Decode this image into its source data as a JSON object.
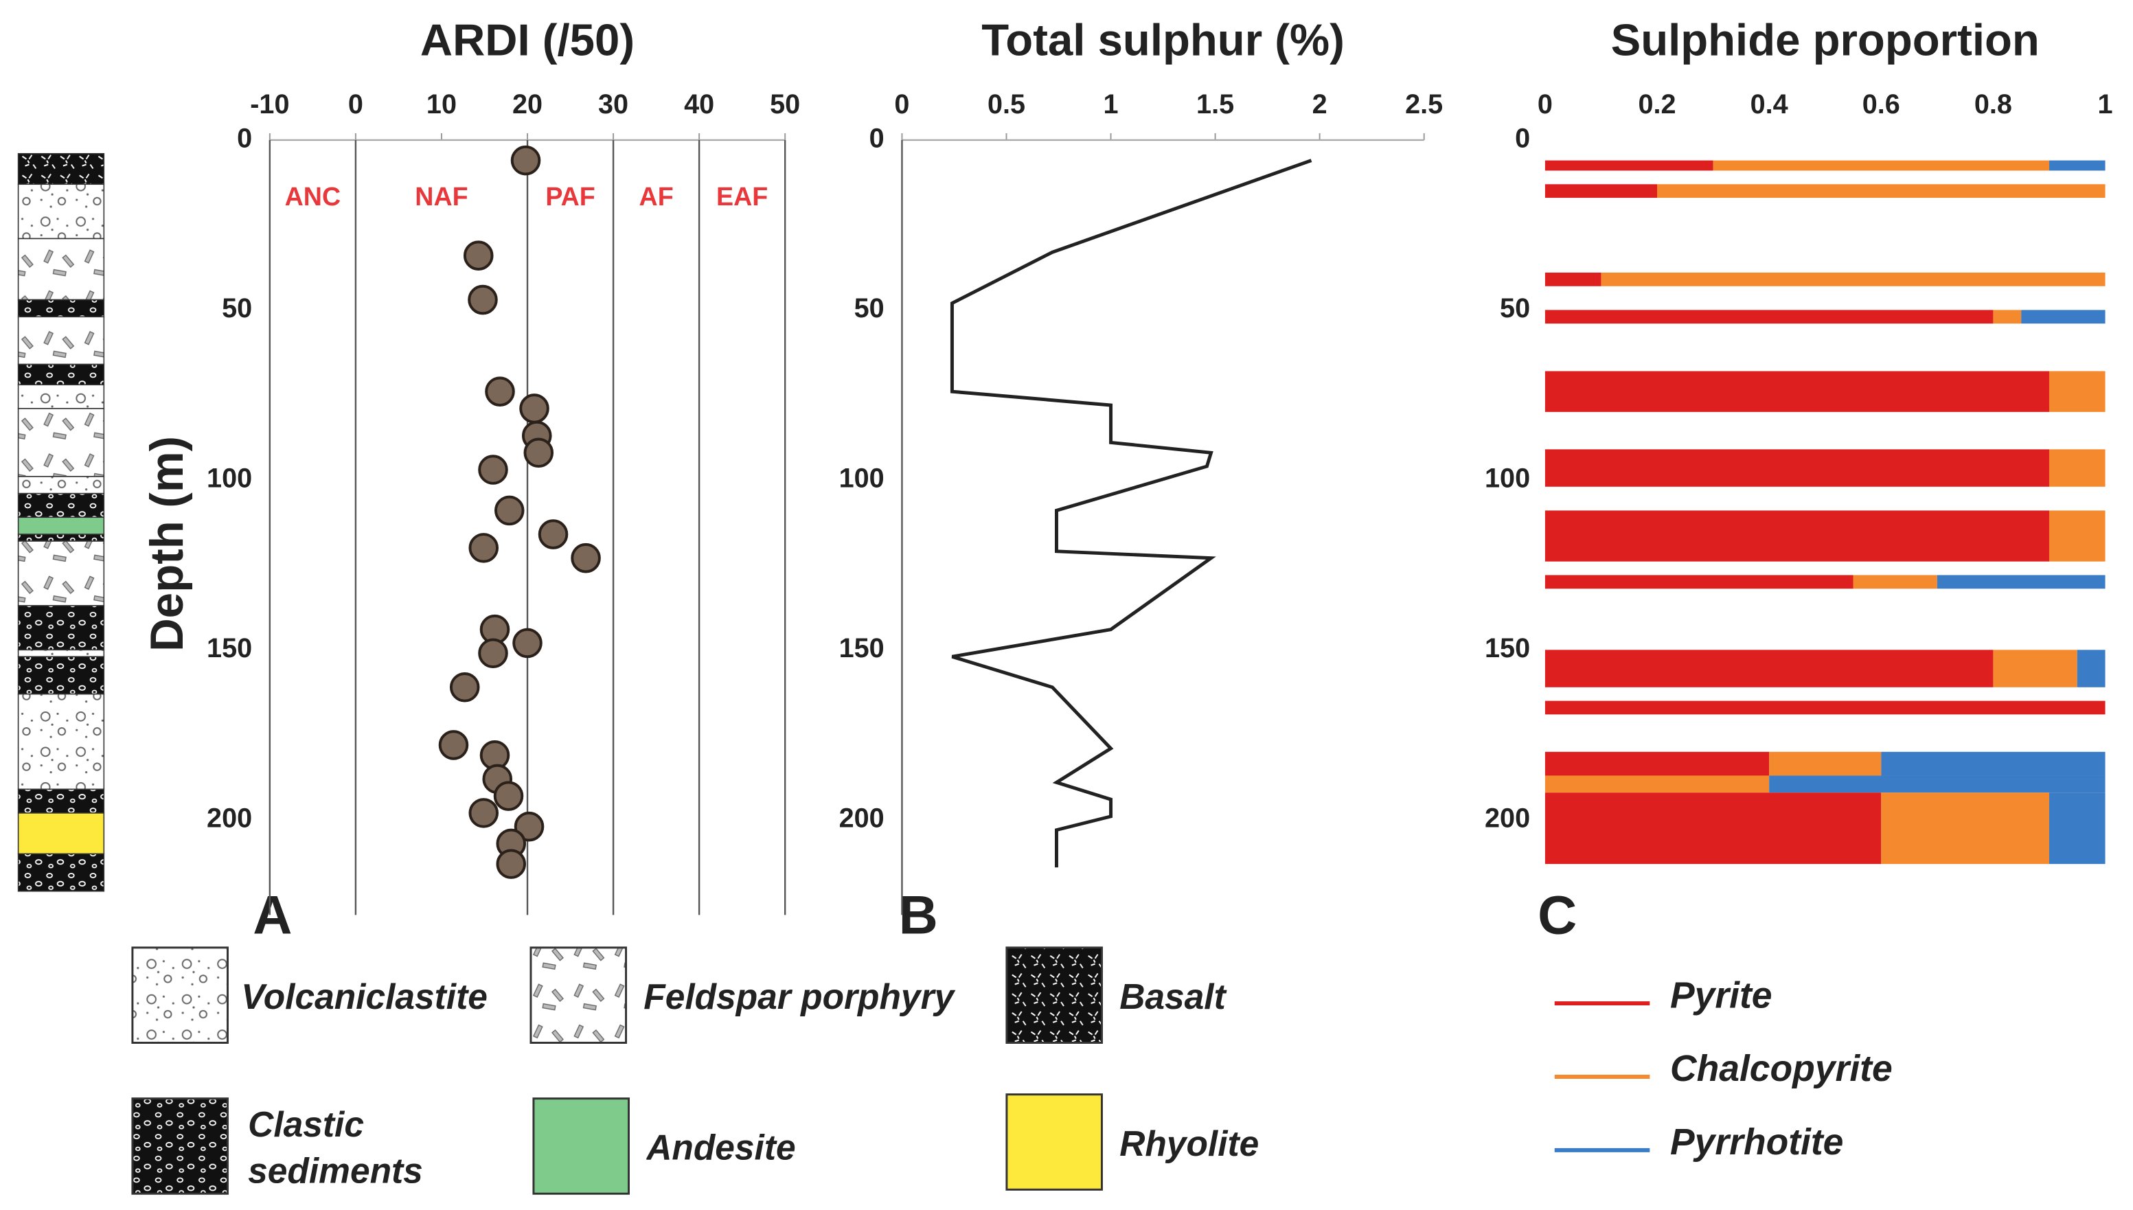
{
  "ylabel": "Depth (m)",
  "chart_data": [
    {
      "type": "scatter",
      "panel": "A",
      "title": "ARDI (/50)",
      "xlim": [
        -10,
        50
      ],
      "xticks": [
        -10,
        0,
        10,
        20,
        30,
        40,
        50
      ],
      "ylim": [
        0,
        228
      ],
      "yticks": [
        0,
        50,
        100,
        150,
        200
      ],
      "zones": [
        "ANC",
        "NAF",
        "PAF",
        "AF",
        "EAF"
      ],
      "zone_bounds": [
        0,
        20,
        30,
        40
      ],
      "zone_color": "#e8383b",
      "color": "#7b6757",
      "values": [
        19.8,
        14.3,
        14.8,
        16.8,
        20.8,
        21.1,
        21.3,
        16,
        17.9,
        23,
        14.9,
        26.8,
        16.2,
        20,
        16,
        12.7,
        11.4,
        16.2,
        16.5,
        17.8,
        14.9,
        20.2,
        18.1,
        18.1
      ],
      "depth": [
        6,
        34,
        47,
        74,
        79,
        87,
        92,
        97,
        109,
        116,
        120,
        123,
        144,
        148,
        151,
        161,
        178,
        181,
        188,
        193,
        198,
        202,
        207,
        213
      ]
    },
    {
      "type": "line",
      "panel": "B",
      "title": "Total sulphur (%)",
      "xlim": [
        0,
        2.5
      ],
      "xticks": [
        0,
        0.5,
        1,
        1.5,
        2,
        2.5
      ],
      "ylim": [
        0,
        228
      ],
      "yticks": [
        0,
        50,
        100,
        150,
        200
      ],
      "color": "#222222",
      "values": [
        1.96,
        0.72,
        0.24,
        0.24,
        1,
        1,
        1.48,
        1.46,
        0.74,
        0.74,
        1.48,
        1,
        0.24,
        0.72,
        1,
        0.74,
        1,
        1,
        0.74,
        0.74
      ],
      "depth": [
        6,
        33,
        48,
        74,
        78,
        89,
        92,
        96,
        109,
        121,
        123,
        144,
        152,
        161,
        179,
        189,
        194,
        199,
        203,
        214
      ]
    },
    {
      "type": "stacked_bar_h",
      "panel": "C",
      "title": "Sulphide proportion",
      "xlim": [
        0,
        1
      ],
      "xticks": [
        0,
        0.2,
        0.4,
        0.6,
        0.8,
        1
      ],
      "ylim": [
        0,
        228
      ],
      "yticks": [
        0,
        50,
        100,
        150,
        200
      ],
      "intervals": [
        [
          6,
          9
        ],
        [
          13,
          17
        ],
        [
          39,
          43
        ],
        [
          50,
          54
        ],
        [
          68,
          80
        ],
        [
          91,
          102
        ],
        [
          109,
          124
        ],
        [
          128,
          132
        ],
        [
          150,
          161
        ],
        [
          165,
          169
        ],
        [
          180,
          187
        ],
        [
          187,
          192
        ],
        [
          192,
          213
        ]
      ],
      "series": [
        {
          "name": "Pyrite",
          "color": "#de1f1f",
          "values": [
            0.3,
            0.2,
            0.1,
            0.8,
            0.9,
            0.9,
            0.9,
            0.55,
            0.8,
            1,
            0.4,
            0,
            0.6
          ]
        },
        {
          "name": "Chalcopyrite",
          "color": "#f5892e",
          "values": [
            0.6,
            0.8,
            0.9,
            0.05,
            0.1,
            0.1,
            0.1,
            0.15,
            0.15,
            0,
            0.2,
            0.4,
            0.3
          ]
        },
        {
          "name": "Pyrrhotite",
          "color": "#3b7cc6",
          "values": [
            0.1,
            0,
            0,
            0.15,
            0,
            0,
            0,
            0.3,
            0.05,
            0,
            0.4,
            0.6,
            0.1
          ]
        }
      ]
    }
  ],
  "lithology": {
    "rocks": [
      "Volcaniclastite",
      "Feldspar porphyry",
      "Basalt",
      "Clastic sediments",
      "Andesite",
      "Rhyolite"
    ],
    "column": [
      {
        "from": 4,
        "to": 13,
        "rock": 2
      },
      {
        "from": 13,
        "to": 29,
        "rock": 0
      },
      {
        "from": 29,
        "to": 47,
        "rock": 1
      },
      {
        "from": 47,
        "to": 52,
        "rock": 3
      },
      {
        "from": 52,
        "to": 66,
        "rock": 1
      },
      {
        "from": 66,
        "to": 72,
        "rock": 3
      },
      {
        "from": 72,
        "to": 79,
        "rock": 0
      },
      {
        "from": 79,
        "to": 99,
        "rock": 1
      },
      {
        "from": 99,
        "to": 104,
        "rock": 0
      },
      {
        "from": 104,
        "to": 111,
        "rock": 3
      },
      {
        "from": 111,
        "to": 116,
        "rock": 4
      },
      {
        "from": 116,
        "to": 118,
        "rock": 3
      },
      {
        "from": 118,
        "to": 137,
        "rock": 1
      },
      {
        "from": 137,
        "to": 150,
        "rock": 3
      },
      {
        "from": 150,
        "to": 152,
        "rock": 0
      },
      {
        "from": 152,
        "to": 163,
        "rock": 3
      },
      {
        "from": 163,
        "to": 191,
        "rock": 0
      },
      {
        "from": 191,
        "to": 198,
        "rock": 3
      },
      {
        "from": 198,
        "to": 210,
        "rock": 5
      },
      {
        "from": 210,
        "to": 221,
        "rock": 3
      }
    ]
  }
}
